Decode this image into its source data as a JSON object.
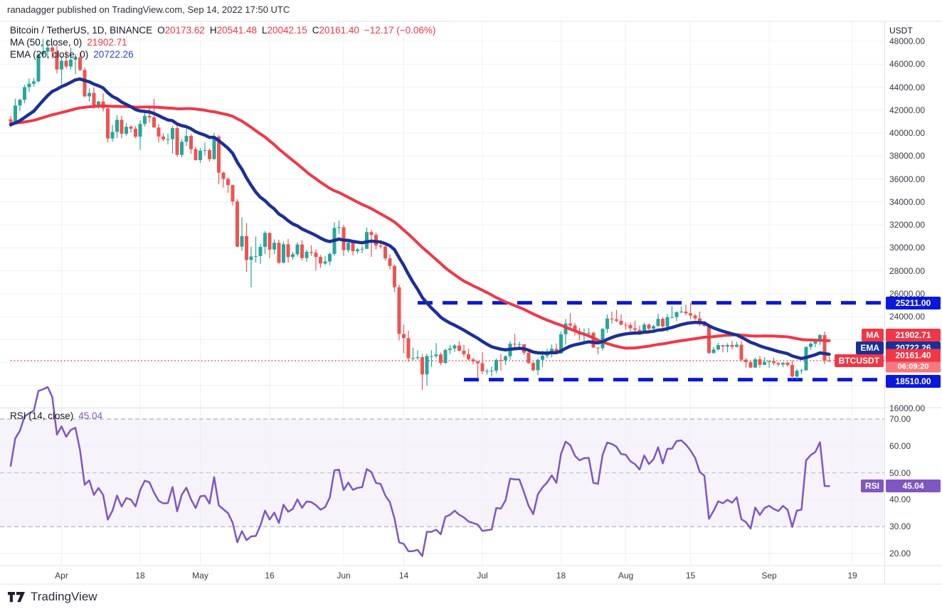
{
  "header": {
    "attribution": "ranadagger published on TradingView.com, Sep 14, 2022 17:50 UTC"
  },
  "footer": {
    "brand": "TradingView"
  },
  "legend": {
    "symbol_title": "Bitcoin / TetherUS, 1D, BINANCE",
    "ohlc": [
      {
        "k": "O",
        "v": "20173.62"
      },
      {
        "k": "H",
        "v": "20541.48"
      },
      {
        "k": "L",
        "v": "20042.15"
      },
      {
        "k": "C",
        "v": "20161.40"
      }
    ],
    "change": "−12.17 (−0.06%)",
    "ma_label": "MA (50, close, 0)",
    "ma_value": "21902.71",
    "ema_label": "EMA (20, close, 0)",
    "ema_value": "20722.26",
    "rsi_label": "RSI (14, close)",
    "rsi_value": "45.04"
  },
  "axis": {
    "unit": "USDT",
    "price_ticks": [
      48000,
      46000,
      44000,
      42000,
      40000,
      38000,
      36000,
      34000,
      32000,
      30000,
      28000,
      26000,
      24000,
      16000
    ],
    "rsi_ticks": [
      70,
      60,
      50,
      40,
      30,
      20
    ],
    "time_ticks": [
      {
        "i": 11,
        "label": "Apr"
      },
      {
        "i": 28,
        "label": "18"
      },
      {
        "i": 41,
        "label": "May"
      },
      {
        "i": 56,
        "label": "16"
      },
      {
        "i": 72,
        "label": "Jun"
      },
      {
        "i": 85,
        "label": "14"
      },
      {
        "i": 102,
        "label": "Jul"
      },
      {
        "i": 119,
        "label": "18"
      },
      {
        "i": 133,
        "label": "Aug"
      },
      {
        "i": 147,
        "label": "15"
      },
      {
        "i": 164,
        "label": "Sep"
      },
      {
        "i": 182,
        "label": "19"
      }
    ]
  },
  "price_labels": {
    "resistance": {
      "value": 25211.0,
      "label": "25211.00"
    },
    "support": {
      "value": 18510.0,
      "label": "18510.00"
    },
    "ma": {
      "name": "MA",
      "value": "21902.71",
      "y_value": 21902.71
    },
    "ema": {
      "name": "EMA",
      "value": "20722.26",
      "y_value": 20722.26
    },
    "last": {
      "name": "BTCUSDT",
      "value": "20161.40",
      "y_value": 20161.4,
      "countdown": "06:09:20"
    },
    "rsi": {
      "name": "RSI",
      "value": "45.04",
      "y_value": 45.04
    }
  },
  "colors": {
    "up": "#26a69a",
    "down": "#ef5350",
    "ma": "#f23645",
    "ema": "#1b3096",
    "level": "#0a18dc",
    "last_line": "#f23645",
    "rsi": "#7e57c2",
    "rsi_band_fill": "rgba(126,87,194,0.07)",
    "band_line": "#8b8fa0",
    "grid": "#eef0f6",
    "border": "#e0e3eb"
  },
  "chart_data": {
    "type": "candlestick",
    "title": "Bitcoin / TetherUS, 1D, BINANCE",
    "symbol": "BTCUSDT",
    "exchange": "BINANCE",
    "interval": "1D",
    "price_axis_label": "USDT",
    "price_axis_range": [
      15600,
      49800
    ],
    "start_date": "2022-03-21",
    "end_date": "2022-09-14",
    "overlays": [
      {
        "name": "MA",
        "period": 50,
        "source": "close",
        "last": 21902.71
      },
      {
        "name": "EMA",
        "period": 20,
        "source": "close",
        "last": 20722.26
      }
    ],
    "levels": [
      {
        "value": 25211.0,
        "style": "dashed",
        "start_index": 88
      },
      {
        "value": 18510.0,
        "style": "dashed",
        "start_index": 98
      },
      {
        "value": 20161.4,
        "style": "dotted",
        "start_index": 0
      }
    ],
    "rsi": {
      "period": 14,
      "source": "close",
      "bands": [
        70,
        50,
        30
      ],
      "range": [
        15,
        75
      ],
      "last": 45.04
    },
    "warmup_closes": [
      41000,
      40400,
      39600,
      38600,
      38950,
      39400,
      41100,
      41050,
      42150,
      41900,
      41100,
      40550,
      40000,
      40300,
      41080
    ],
    "candles": [
      [
        41200,
        41500,
        40500,
        41000
      ],
      [
        41000,
        43000,
        40900,
        42400
      ],
      [
        42400,
        43000,
        41900,
        42900
      ],
      [
        42900,
        44200,
        42600,
        44000
      ],
      [
        44000,
        44750,
        43600,
        44300
      ],
      [
        44300,
        44800,
        44050,
        44500
      ],
      [
        44500,
        46950,
        44420,
        46850
      ],
      [
        46850,
        48200,
        46650,
        47100
      ],
      [
        47100,
        48150,
        46550,
        47450
      ],
      [
        47450,
        47700,
        46500,
        47100
      ],
      [
        47100,
        47600,
        45200,
        45540
      ],
      [
        45540,
        46720,
        44250,
        46300
      ],
      [
        46300,
        47200,
        45620,
        45800
      ],
      [
        45800,
        47450,
        45530,
        46400
      ],
      [
        46400,
        46890,
        45150,
        46600
      ],
      [
        46600,
        47000,
        45400,
        45500
      ],
      [
        45500,
        45720,
        43120,
        43200
      ],
      [
        43200,
        43900,
        42730,
        43500
      ],
      [
        43500,
        43970,
        42110,
        42300
      ],
      [
        42300,
        42800,
        42130,
        42750
      ],
      [
        42750,
        43450,
        41870,
        42150
      ],
      [
        42150,
        42250,
        39200,
        39530
      ],
      [
        39530,
        40700,
        39250,
        40100
      ],
      [
        40100,
        41560,
        39570,
        41150
      ],
      [
        41150,
        41500,
        39550,
        39940
      ],
      [
        39940,
        40870,
        39770,
        40550
      ],
      [
        40550,
        40700,
        40050,
        40380
      ],
      [
        40380,
        40600,
        39550,
        39680
      ],
      [
        39680,
        41100,
        38550,
        40800
      ],
      [
        40800,
        41770,
        40570,
        41500
      ],
      [
        41500,
        42200,
        40900,
        41370
      ],
      [
        41370,
        42980,
        40800,
        40480
      ],
      [
        40480,
        40790,
        39180,
        39700
      ],
      [
        39700,
        39980,
        39280,
        39450
      ],
      [
        39450,
        39940,
        39000,
        39470
      ],
      [
        39470,
        40600,
        38200,
        40430
      ],
      [
        40430,
        40770,
        37950,
        38100
      ],
      [
        38100,
        39470,
        37880,
        39240
      ],
      [
        39240,
        40400,
        38880,
        39750
      ],
      [
        39750,
        39920,
        38190,
        38600
      ],
      [
        38600,
        38800,
        37580,
        37650
      ],
      [
        37650,
        38680,
        37400,
        38470
      ],
      [
        38470,
        39170,
        38050,
        38510
      ],
      [
        38510,
        38650,
        37500,
        37730
      ],
      [
        37730,
        40020,
        37680,
        39690
      ],
      [
        39690,
        39840,
        35550,
        36550
      ],
      [
        36550,
        36650,
        35250,
        36000
      ],
      [
        36000,
        36150,
        34800,
        35470
      ],
      [
        35470,
        35510,
        33700,
        34040
      ],
      [
        34040,
        34240,
        30050,
        30100
      ],
      [
        30100,
        32650,
        29730,
        31020
      ],
      [
        31020,
        32150,
        27900,
        28940
      ],
      [
        28940,
        30100,
        26550,
        29250
      ],
      [
        29250,
        30980,
        28700,
        29280
      ],
      [
        29280,
        30340,
        28600,
        30080
      ],
      [
        30080,
        31460,
        29460,
        31300
      ],
      [
        31300,
        31330,
        29100,
        29850
      ],
      [
        29850,
        30740,
        29450,
        30440
      ],
      [
        30440,
        30710,
        28600,
        28700
      ],
      [
        28700,
        30550,
        28650,
        30310
      ],
      [
        30310,
        30780,
        28710,
        29200
      ],
      [
        29200,
        29650,
        28950,
        29440
      ],
      [
        29440,
        30490,
        29240,
        30290
      ],
      [
        30290,
        30660,
        28900,
        29110
      ],
      [
        29110,
        29850,
        28780,
        29650
      ],
      [
        29650,
        30230,
        29300,
        29570
      ],
      [
        29570,
        29860,
        28020,
        29200
      ],
      [
        29200,
        29370,
        28250,
        28630
      ],
      [
        28630,
        29270,
        28500,
        28810
      ],
      [
        28810,
        29580,
        28490,
        29470
      ],
      [
        29470,
        32220,
        29300,
        31730
      ],
      [
        31730,
        32380,
        31200,
        31790
      ],
      [
        31790,
        31980,
        29300,
        29800
      ],
      [
        29800,
        30690,
        29590,
        30450
      ],
      [
        30450,
        30700,
        29340,
        29700
      ],
      [
        29700,
        29980,
        29480,
        29860
      ],
      [
        29860,
        30170,
        29540,
        29910
      ],
      [
        29910,
        31770,
        29890,
        31370
      ],
      [
        31370,
        31580,
        29220,
        31120
      ],
      [
        31120,
        31310,
        29860,
        30200
      ],
      [
        30200,
        30680,
        29940,
        30110
      ],
      [
        30110,
        30350,
        28880,
        29080
      ],
      [
        29080,
        29400,
        28110,
        28420
      ],
      [
        28420,
        28540,
        26150,
        26570
      ],
      [
        26570,
        26800,
        21930,
        22490
      ],
      [
        22490,
        23300,
        20820,
        22130
      ],
      [
        22130,
        22780,
        20080,
        20380
      ],
      [
        20380,
        21300,
        20200,
        20390
      ],
      [
        20390,
        21070,
        20250,
        20470
      ],
      [
        20470,
        20750,
        17600,
        18970
      ],
      [
        18970,
        20780,
        17980,
        20570
      ],
      [
        20570,
        21080,
        19640,
        20570
      ],
      [
        20570,
        21700,
        20390,
        20710
      ],
      [
        20710,
        20880,
        19770,
        19970
      ],
      [
        19970,
        21220,
        19890,
        21100
      ],
      [
        21100,
        21540,
        20740,
        21230
      ],
      [
        21230,
        21600,
        20930,
        21490
      ],
      [
        21490,
        21880,
        20970,
        21030
      ],
      [
        21030,
        21560,
        20510,
        20730
      ],
      [
        20730,
        21200,
        20180,
        20280
      ],
      [
        20280,
        20430,
        19850,
        20100
      ],
      [
        20100,
        20160,
        18630,
        19940
      ],
      [
        19940,
        20900,
        18980,
        19240
      ],
      [
        19240,
        19450,
        18950,
        19270
      ],
      [
        19270,
        19650,
        18780,
        19300
      ],
      [
        19300,
        20350,
        19060,
        20230
      ],
      [
        20230,
        20730,
        19290,
        20190
      ],
      [
        20190,
        20640,
        19790,
        20550
      ],
      [
        20550,
        21850,
        20250,
        21640
      ],
      [
        21640,
        22500,
        21180,
        21590
      ],
      [
        21590,
        21820,
        21150,
        21590
      ],
      [
        21590,
        21600,
        20670,
        20860
      ],
      [
        20860,
        21070,
        19890,
        19960
      ],
      [
        19960,
        20060,
        19240,
        19330
      ],
      [
        19330,
        20340,
        18920,
        20240
      ],
      [
        20240,
        21050,
        19620,
        20590
      ],
      [
        20590,
        21190,
        20380,
        20840
      ],
      [
        20840,
        21580,
        20460,
        21200
      ],
      [
        21200,
        21670,
        20770,
        20790
      ],
      [
        20790,
        22700,
        20760,
        22470
      ],
      [
        22470,
        23800,
        21570,
        23400
      ],
      [
        23400,
        24280,
        22920,
        23230
      ],
      [
        23230,
        23450,
        22350,
        22690
      ],
      [
        22690,
        23010,
        21950,
        22450
      ],
      [
        22450,
        22980,
        21590,
        22580
      ],
      [
        22580,
        23020,
        22260,
        22600
      ],
      [
        22600,
        22670,
        21260,
        21310
      ],
      [
        21310,
        21330,
        20730,
        21250
      ],
      [
        21250,
        23000,
        21050,
        22930
      ],
      [
        22930,
        24180,
        22580,
        23840
      ],
      [
        23840,
        24440,
        23400,
        23770
      ],
      [
        23770,
        24600,
        23500,
        23640
      ],
      [
        23640,
        24190,
        23250,
        23300
      ],
      [
        23300,
        23510,
        22850,
        23270
      ],
      [
        23270,
        23470,
        22680,
        22980
      ],
      [
        22980,
        23650,
        22540,
        22850
      ],
      [
        22850,
        23220,
        22400,
        22620
      ],
      [
        22620,
        23470,
        22570,
        23310
      ],
      [
        23310,
        23400,
        22830,
        22950
      ],
      [
        22950,
        23270,
        22760,
        23180
      ],
      [
        23180,
        24250,
        23150,
        23810
      ],
      [
        23810,
        23940,
        22850,
        23150
      ],
      [
        23150,
        24230,
        22670,
        23950
      ],
      [
        23950,
        24920,
        23870,
        23960
      ],
      [
        23960,
        24450,
        23600,
        24400
      ],
      [
        24400,
        24890,
        24300,
        24440
      ],
      [
        24440,
        25050,
        24130,
        24300
      ],
      [
        24300,
        25211,
        23780,
        24100
      ],
      [
        24100,
        24250,
        23690,
        23850
      ],
      [
        23850,
        24450,
        23180,
        23340
      ],
      [
        23340,
        23600,
        23110,
        23190
      ],
      [
        23190,
        23210,
        20760,
        20830
      ],
      [
        20830,
        21380,
        20770,
        21140
      ],
      [
        21140,
        21720,
        21070,
        21520
      ],
      [
        21520,
        21530,
        20890,
        21400
      ],
      [
        21400,
        21680,
        20890,
        21530
      ],
      [
        21530,
        21900,
        21150,
        21370
      ],
      [
        21370,
        21820,
        21310,
        21560
      ],
      [
        21560,
        21880,
        20110,
        20250
      ],
      [
        20250,
        20390,
        19550,
        20040
      ],
      [
        20040,
        20170,
        19520,
        19560
      ],
      [
        19560,
        20430,
        19540,
        20290
      ],
      [
        20290,
        20580,
        19570,
        19800
      ],
      [
        19800,
        20480,
        19790,
        20050
      ],
      [
        20050,
        20200,
        19560,
        20130
      ],
      [
        20130,
        20440,
        19760,
        19950
      ],
      [
        19950,
        20050,
        19650,
        19830
      ],
      [
        19830,
        20030,
        19590,
        19990
      ],
      [
        19990,
        20060,
        19640,
        19790
      ],
      [
        19790,
        20180,
        18540,
        18790
      ],
      [
        18790,
        19460,
        18510,
        19290
      ],
      [
        19290,
        19450,
        19000,
        19320
      ],
      [
        19320,
        21400,
        19290,
        21360
      ],
      [
        21360,
        21780,
        21090,
        21650
      ],
      [
        21650,
        21860,
        21350,
        21830
      ],
      [
        21830,
        22480,
        21530,
        22400
      ],
      [
        22400,
        22700,
        19860,
        20170
      ],
      [
        20173.62,
        20541.48,
        20042.15,
        20161.4
      ]
    ]
  }
}
